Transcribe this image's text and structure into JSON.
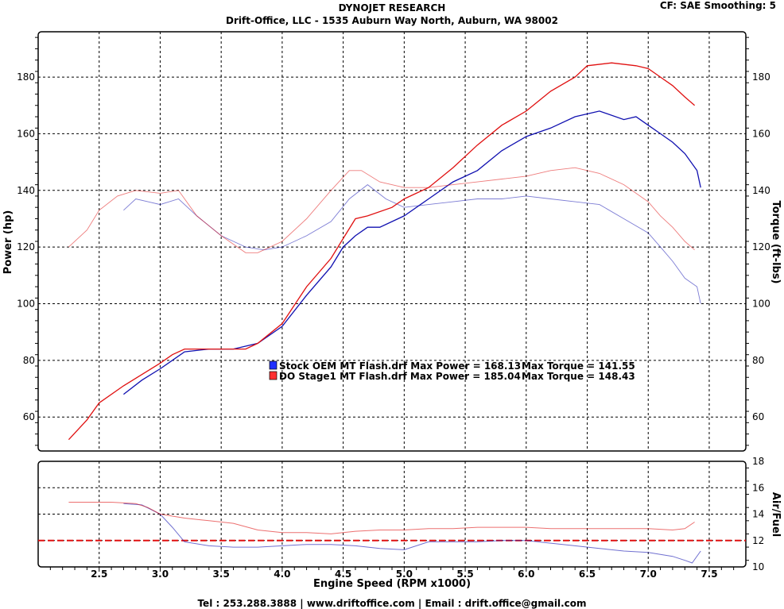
{
  "header": {
    "title": "DYNOJET RESEARCH",
    "subtitle": "Drift-Office, LLC - 1535 Auburn Way North, Auburn, WA 98002",
    "cf_label": "CF: SAE  Smoothing: 5"
  },
  "footer": {
    "contact": "Tel :  253.288.3888 | www.driftoffice.com | Email : drift.office@gmail.com"
  },
  "colors": {
    "stock": "#1010b0",
    "stage1": "#e01010",
    "grid": "#000000"
  },
  "legend": {
    "entries": [
      {
        "text": "Stock OEM MT Flash.drf Max Power = 168.13",
        "torque": "Max Torque = 141.55",
        "color": "#2030ff"
      },
      {
        "text": "DO Stage1 MT Flash.drf Max Power = 185.04",
        "torque": "Max Torque = 148.43",
        "color": "#ff3030"
      }
    ]
  },
  "chart_data": [
    {
      "type": "line",
      "xlabel": "Engine Speed (RPM x1000)",
      "ylabel": "Power (hp)",
      "y2label": "Torque (ft-lbs)",
      "xlim": [
        2.0,
        7.8
      ],
      "ylim": [
        48,
        196
      ],
      "x_ticks": [
        2.5,
        3.0,
        3.5,
        4.0,
        4.5,
        5.0,
        5.5,
        6.0,
        6.5,
        7.0,
        7.5
      ],
      "y_ticks": [
        60,
        80,
        100,
        120,
        140,
        160,
        180
      ],
      "grid": true,
      "series": [
        {
          "name": "Stock OEM MT Flash.drf",
          "kind": "power",
          "x": [
            2.7,
            2.85,
            3.0,
            3.1,
            3.2,
            3.4,
            3.6,
            3.8,
            4.0,
            4.2,
            4.4,
            4.5,
            4.6,
            4.7,
            4.8,
            5.0,
            5.2,
            5.4,
            5.6,
            5.8,
            6.0,
            6.2,
            6.4,
            6.6,
            6.8,
            6.9,
            7.0,
            7.1,
            7.2,
            7.3,
            7.4,
            7.43
          ],
          "y": [
            68,
            73,
            77,
            80,
            83,
            84,
            84,
            86,
            92,
            103,
            113,
            120,
            124,
            127,
            127,
            131,
            137,
            143,
            147,
            154,
            159,
            162,
            166,
            168,
            165,
            166,
            163,
            160,
            157,
            153,
            147,
            141
          ]
        },
        {
          "name": "Stock OEM MT Flash.drf",
          "kind": "torque",
          "x": [
            2.7,
            2.8,
            3.0,
            3.15,
            3.3,
            3.5,
            3.7,
            3.85,
            4.0,
            4.2,
            4.4,
            4.55,
            4.7,
            4.85,
            5.0,
            5.2,
            5.4,
            5.6,
            5.8,
            6.0,
            6.2,
            6.4,
            6.6,
            6.8,
            7.0,
            7.1,
            7.2,
            7.3,
            7.4,
            7.43
          ],
          "y": [
            133,
            137,
            135,
            137,
            131,
            124,
            120,
            119,
            120,
            124,
            129,
            137,
            142,
            137,
            134,
            135,
            136,
            137,
            137,
            138,
            137,
            136,
            135,
            130,
            125,
            120,
            115,
            109,
            106,
            100
          ]
        },
        {
          "name": "DO Stage1 MT Flash.drf",
          "kind": "power",
          "x": [
            2.25,
            2.4,
            2.5,
            2.7,
            2.85,
            3.0,
            3.1,
            3.2,
            3.4,
            3.6,
            3.7,
            3.8,
            4.0,
            4.2,
            4.4,
            4.5,
            4.6,
            4.7,
            4.9,
            5.0,
            5.2,
            5.4,
            5.6,
            5.8,
            6.0,
            6.2,
            6.4,
            6.5,
            6.7,
            6.9,
            7.0,
            7.1,
            7.2,
            7.3,
            7.38
          ],
          "y": [
            52,
            59,
            65,
            71,
            75,
            79,
            82,
            84,
            84,
            84,
            84,
            86,
            93,
            106,
            116,
            123,
            130,
            131,
            134,
            137,
            141,
            148,
            156,
            163,
            168,
            175,
            180,
            184,
            185,
            184,
            183,
            180,
            177,
            173,
            170
          ]
        },
        {
          "name": "DO Stage1 MT Flash.drf",
          "kind": "torque",
          "x": [
            2.25,
            2.4,
            2.5,
            2.65,
            2.8,
            3.0,
            3.15,
            3.3,
            3.5,
            3.7,
            3.8,
            4.0,
            4.2,
            4.4,
            4.55,
            4.65,
            4.8,
            5.0,
            5.2,
            5.4,
            5.6,
            5.8,
            6.0,
            6.2,
            6.4,
            6.6,
            6.8,
            7.0,
            7.1,
            7.2,
            7.3,
            7.38
          ],
          "y": [
            120,
            126,
            133,
            138,
            140,
            139,
            140,
            131,
            124,
            118,
            118,
            122,
            130,
            140,
            147,
            147,
            143,
            141,
            141,
            142,
            143,
            144,
            145,
            147,
            148,
            146,
            142,
            136,
            131,
            127,
            122,
            119
          ]
        }
      ]
    },
    {
      "type": "line",
      "xlabel": "Engine Speed (RPM x1000)",
      "ylabel": "Air/Fuel",
      "xlim": [
        2.0,
        7.8
      ],
      "ylim": [
        10,
        18
      ],
      "y_ticks": [
        10,
        12,
        14,
        16,
        18
      ],
      "reference_line": 12,
      "grid": true,
      "series": [
        {
          "name": "Stock OEM MT Flash.drf",
          "x": [
            2.7,
            2.85,
            3.0,
            3.1,
            3.2,
            3.4,
            3.6,
            3.8,
            4.0,
            4.2,
            4.4,
            4.6,
            4.8,
            5.0,
            5.1,
            5.2,
            5.4,
            5.6,
            5.8,
            6.0,
            6.2,
            6.4,
            6.6,
            6.8,
            7.0,
            7.2,
            7.3,
            7.36,
            7.43
          ],
          "y": [
            14.8,
            14.7,
            14.0,
            13.0,
            11.9,
            11.6,
            11.5,
            11.5,
            11.6,
            11.7,
            11.7,
            11.6,
            11.4,
            11.3,
            11.6,
            11.9,
            11.9,
            11.9,
            12.0,
            12.0,
            11.8,
            11.6,
            11.4,
            11.2,
            11.1,
            10.8,
            10.5,
            10.3,
            11.2
          ]
        },
        {
          "name": "DO Stage1 MT Flash.drf",
          "x": [
            2.25,
            2.4,
            2.6,
            2.8,
            2.9,
            3.0,
            3.2,
            3.4,
            3.6,
            3.8,
            4.0,
            4.2,
            4.4,
            4.6,
            4.8,
            5.0,
            5.2,
            5.4,
            5.6,
            5.8,
            6.0,
            6.2,
            6.4,
            6.6,
            6.8,
            7.0,
            7.2,
            7.3,
            7.38
          ],
          "y": [
            14.9,
            14.9,
            14.9,
            14.8,
            14.5,
            14.0,
            13.7,
            13.5,
            13.3,
            12.8,
            12.6,
            12.6,
            12.5,
            12.7,
            12.8,
            12.8,
            12.9,
            12.9,
            13.0,
            13.0,
            13.0,
            12.9,
            12.9,
            12.9,
            12.9,
            12.9,
            12.8,
            12.9,
            13.4
          ]
        }
      ]
    }
  ]
}
